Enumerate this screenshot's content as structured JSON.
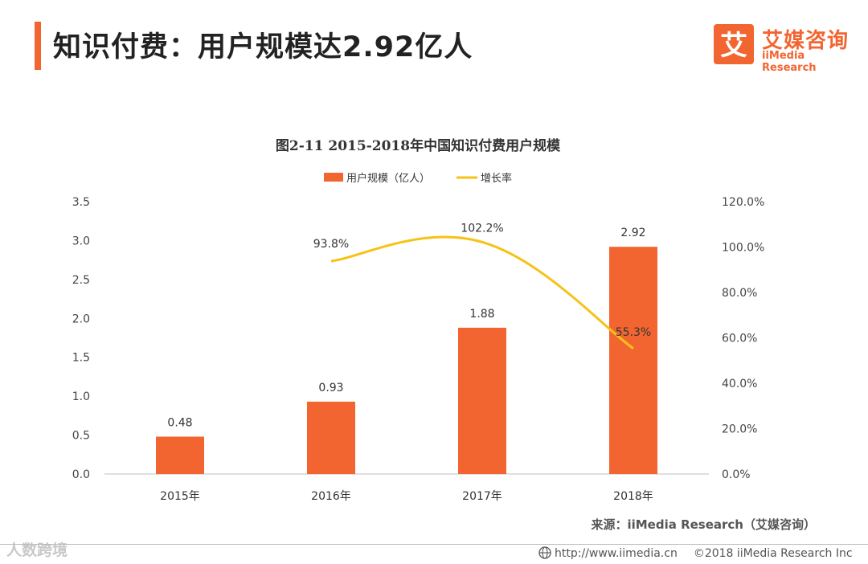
{
  "header": {
    "title": "知识付费：用户规模达2.92亿人",
    "logo_cn": "艾媒咨询",
    "logo_en": "iiMedia Research",
    "logo_glyph": "艾"
  },
  "colors": {
    "accent": "#f26531",
    "bar": "#f26531",
    "line": "#f7c216"
  },
  "chart_data": {
    "type": "bar",
    "title": "图2-11 2015-2018年中国知识付费用户规模",
    "categories": [
      "2015年",
      "2016年",
      "2017年",
      "2018年"
    ],
    "series": [
      {
        "name": "用户规模（亿人）",
        "kind": "bar",
        "axis": "left",
        "values": [
          0.48,
          0.93,
          1.88,
          2.92
        ],
        "labels": [
          "0.48",
          "0.93",
          "1.88",
          "2.92"
        ]
      },
      {
        "name": "增长率",
        "kind": "line",
        "axis": "right",
        "values": [
          null,
          93.8,
          102.2,
          55.3
        ],
        "labels": [
          "",
          "93.8%",
          "102.2%",
          "55.3%"
        ]
      }
    ],
    "left_axis": {
      "ylim": [
        0,
        3.5
      ],
      "ticks": [
        "0.0",
        "0.5",
        "1.0",
        "1.5",
        "2.0",
        "2.5",
        "3.0",
        "3.5"
      ]
    },
    "right_axis": {
      "ylim": [
        0,
        120
      ],
      "ticks": [
        "0.0%",
        "20.0%",
        "40.0%",
        "60.0%",
        "80.0%",
        "100.0%",
        "120.0%"
      ]
    },
    "legend_position": "top-center",
    "grid": false
  },
  "source": "来源：iiMedia Research（艾媒咨询）",
  "footer": {
    "url": "http://www.iimedia.cn",
    "copyright": "©2018  iiMedia Research  Inc"
  },
  "watermark": "人数跨境"
}
